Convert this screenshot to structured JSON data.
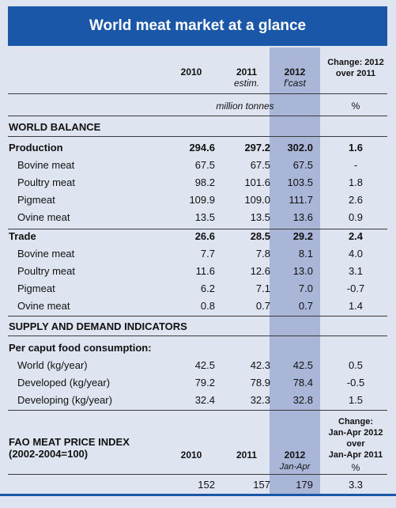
{
  "title": "World meat market at a glance",
  "columns": {
    "y2010": "2010",
    "y2011": "2011",
    "y2011_sub": "estim.",
    "y2012": "2012",
    "y2012_sub": "f'cast",
    "change_line1": "Change: 2012",
    "change_line2": "over 2011",
    "units": "million tonnes",
    "pct": "%"
  },
  "world_balance": {
    "heading": "WORLD BALANCE",
    "rows": [
      {
        "label": "Production",
        "v2010": "294.6",
        "v2011": "297.2",
        "v2012": "302.0",
        "change": "1.6",
        "bold": true
      },
      {
        "label": "Bovine meat",
        "v2010": "67.5",
        "v2011": "67.5",
        "v2012": "67.5",
        "change": "-"
      },
      {
        "label": "Poultry meat",
        "v2010": "98.2",
        "v2011": "101.6",
        "v2012": "103.5",
        "change": "1.8"
      },
      {
        "label": "Pigmeat",
        "v2010": "109.9",
        "v2011": "109.0",
        "v2012": "111.7",
        "change": "2.6"
      },
      {
        "label": "Ovine meat",
        "v2010": "13.5",
        "v2011": "13.5",
        "v2012": "13.6",
        "change": "0.9"
      },
      {
        "label": "Trade",
        "v2010": "26.6",
        "v2011": "28.5",
        "v2012": "29.2",
        "change": "2.4",
        "bold": true
      },
      {
        "label": "Bovine meat",
        "v2010": "7.7",
        "v2011": "7.8",
        "v2012": "8.1",
        "change": "4.0"
      },
      {
        "label": "Poultry meat",
        "v2010": "11.6",
        "v2011": "12.6",
        "v2012": "13.0",
        "change": "3.1"
      },
      {
        "label": "Pigmeat",
        "v2010": "6.2",
        "v2011": "7.1",
        "v2012": "7.0",
        "change": "-0.7"
      },
      {
        "label": "Ovine meat",
        "v2010": "0.8",
        "v2011": "0.7",
        "v2012": "0.7",
        "change": "1.4"
      }
    ]
  },
  "indicators": {
    "heading": "SUPPLY AND DEMAND INDICATORS",
    "subheading": "Per caput food consumption:",
    "rows": [
      {
        "label": "World (kg/year)",
        "v2010": "42.5",
        "v2011": "42.3",
        "v2012": "42.5",
        "change": "0.5"
      },
      {
        "label": "Developed (kg/year)",
        "v2010": "79.2",
        "v2011": "78.9",
        "v2012": "78.4",
        "change": "-0.5"
      },
      {
        "label": "Developing (kg/year)",
        "v2010": "32.4",
        "v2011": "32.3",
        "v2012": "32.8",
        "change": "1.5"
      }
    ]
  },
  "price_index": {
    "label_line1": "FAO MEAT PRICE INDEX",
    "label_line2": "(2002-2004=100)",
    "y2010": "2010",
    "y2011": "2011",
    "y2012": "2012",
    "y2012_sub": "Jan-Apr",
    "change_line1": "Change:",
    "change_line2": "Jan-Apr 2012",
    "change_line3": "over",
    "change_line4": "Jan-Apr 2011",
    "pct": "%",
    "v2010": "152",
    "v2011": "157",
    "v2012": "179",
    "change": "3.3"
  }
}
